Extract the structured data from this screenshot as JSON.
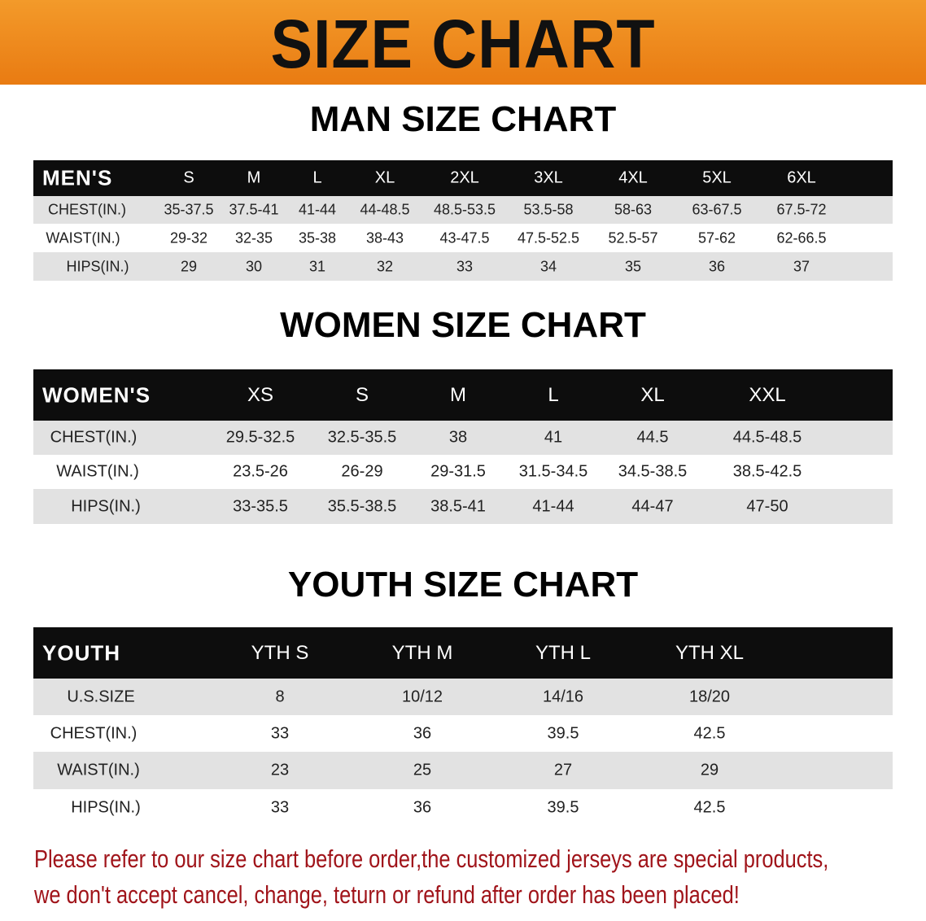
{
  "banner_title": "SIZE CHART",
  "colors": {
    "banner": "#ee8618",
    "header_row": "#0d0d0d",
    "note_text": "#a0141a"
  },
  "tables": [
    {
      "title": "MAN SIZE CHART",
      "header": [
        "MEN'S",
        "S",
        "M",
        "L",
        "XL",
        "2XL",
        "3XL",
        "4XL",
        "5XL",
        "6XL"
      ],
      "rows": [
        [
          "CHEST(IN.)",
          "35-37.5",
          "37.5-41",
          "41-44",
          "44-48.5",
          "48.5-53.5",
          "53.5-58",
          "58-63",
          "63-67.5",
          "67.5-72"
        ],
        [
          "WAIST(IN.)",
          "29-32",
          "32-35",
          "35-38",
          "38-43",
          "43-47.5",
          "47.5-52.5",
          "52.5-57",
          "57-62",
          "62-66.5"
        ],
        [
          "HIPS(IN.)",
          "29",
          "30",
          "31",
          "32",
          "33",
          "34",
          "35",
          "36",
          "37"
        ]
      ]
    },
    {
      "title": "WOMEN SIZE CHART",
      "header": [
        "WOMEN'S",
        "XS",
        "S",
        "M",
        "L",
        "XL",
        "XXL"
      ],
      "rows": [
        [
          "CHEST(IN.)",
          "29.5-32.5",
          "32.5-35.5",
          "38",
          "41",
          "44.5",
          "44.5-48.5"
        ],
        [
          "WAIST(IN.)",
          "23.5-26",
          "26-29",
          "29-31.5",
          "31.5-34.5",
          "34.5-38.5",
          "38.5-42.5"
        ],
        [
          "HIPS(IN.)",
          "33-35.5",
          "35.5-38.5",
          "38.5-41",
          "41-44",
          "44-47",
          "47-50"
        ]
      ]
    },
    {
      "title": "YOUTH SIZE CHART",
      "header": [
        "YOUTH",
        "YTH S",
        "YTH M",
        "YTH L",
        "YTH XL"
      ],
      "rows": [
        [
          "U.S.SIZE",
          "8",
          "10/12",
          "14/16",
          "18/20"
        ],
        [
          "CHEST(IN.)",
          "33",
          "36",
          "39.5",
          "42.5"
        ],
        [
          "WAIST(IN.)",
          "23",
          "25",
          "27",
          "29"
        ],
        [
          "HIPS(IN.)",
          "33",
          "36",
          "39.5",
          "42.5"
        ]
      ]
    }
  ],
  "note": [
    "Please refer to our size chart before order,the customized jerseys are special products,",
    "we don't accept cancel, change, teturn or refund after order has been placed!"
  ]
}
